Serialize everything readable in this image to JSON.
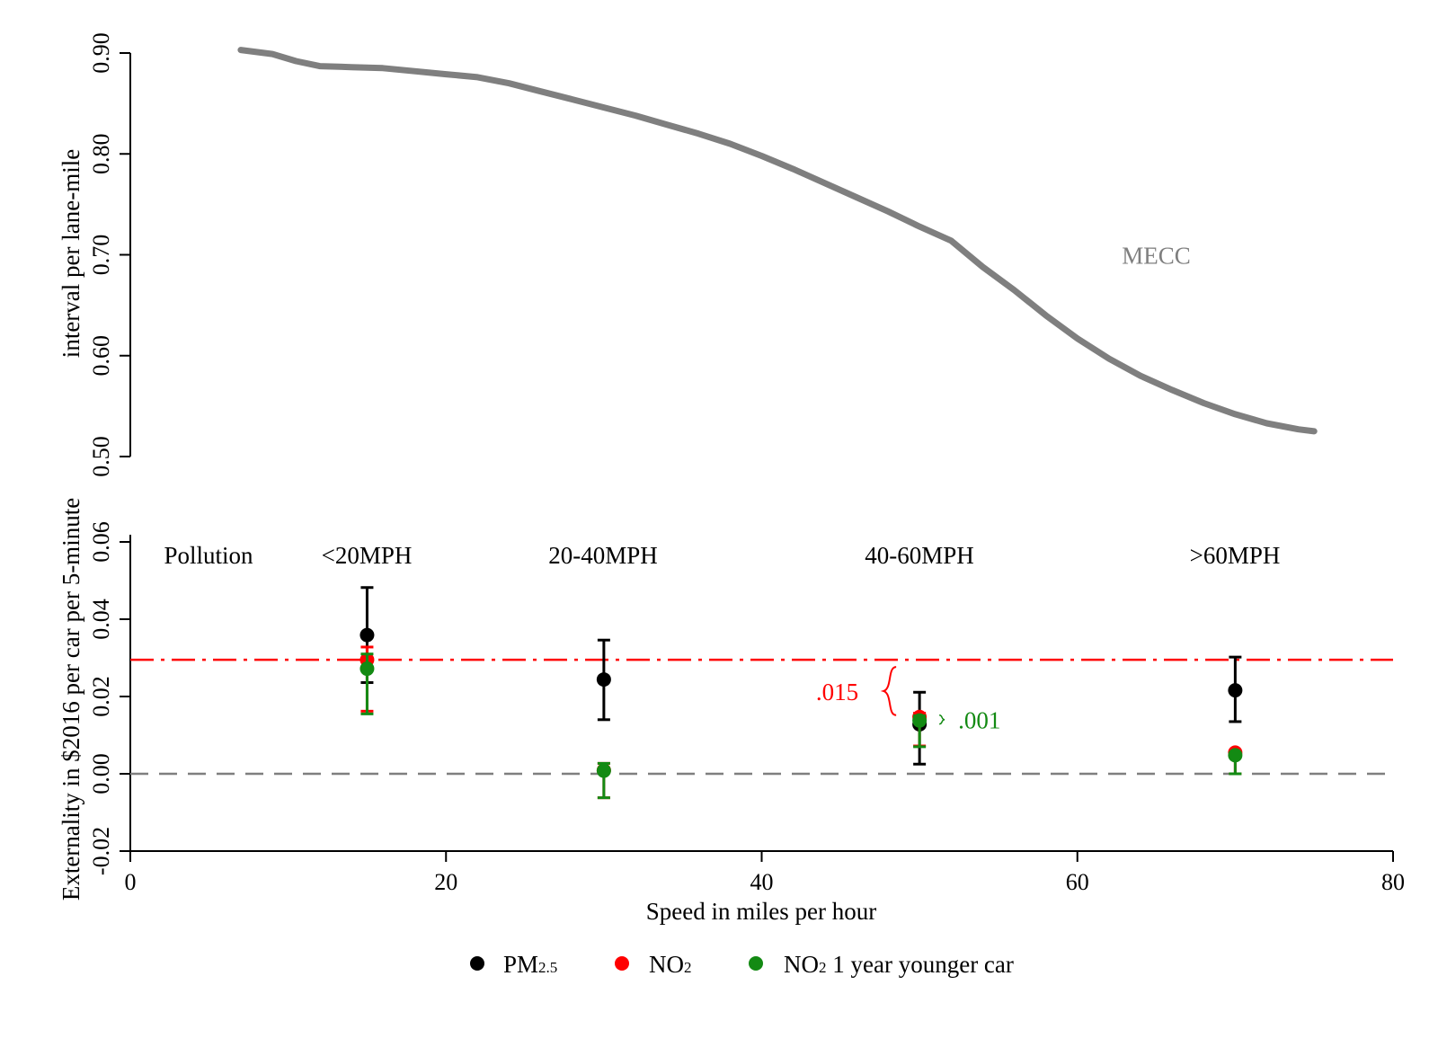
{
  "colors": {
    "mecc_line": "#7f7f7f",
    "mecc_label": "#7f7f7f",
    "pm25": "#000000",
    "no2": "#ff0000",
    "no2_younger": "#138a13",
    "zero_line": "#7f7f7f",
    "ref_line": "#ff0000"
  },
  "chart_data": [
    {
      "type": "line",
      "panel": "top",
      "ylabel": "interval per lane-mile",
      "ylim": [
        0.5,
        0.9
      ],
      "xlim": [
        0,
        80
      ],
      "yticks": [
        "0.50",
        "0.60",
        "0.70",
        "0.80",
        "0.90"
      ],
      "series": [
        {
          "name": "MECC",
          "x": [
            7,
            9,
            10.5,
            12,
            14,
            16,
            18,
            20,
            22,
            24,
            26,
            28,
            30,
            32,
            34,
            36,
            38,
            40,
            42,
            44,
            46,
            48,
            50,
            52,
            54,
            56,
            58,
            60,
            62,
            64,
            66,
            68,
            70,
            72,
            74,
            75
          ],
          "y": [
            0.903,
            0.899,
            0.892,
            0.887,
            0.886,
            0.885,
            0.882,
            0.879,
            0.876,
            0.87,
            0.862,
            0.854,
            0.846,
            0.838,
            0.829,
            0.82,
            0.81,
            0.798,
            0.785,
            0.771,
            0.757,
            0.743,
            0.728,
            0.714,
            0.688,
            0.665,
            0.64,
            0.617,
            0.597,
            0.58,
            0.566,
            0.553,
            0.542,
            0.533,
            0.527,
            0.525
          ]
        }
      ],
      "annotations": [
        {
          "text": "MECC",
          "x": 65,
          "y": 0.7
        }
      ]
    },
    {
      "type": "scatter",
      "panel": "bottom",
      "xlabel": "Speed in miles per hour",
      "ylabel": "Externality in $2016 per car per 5-minute",
      "xlim": [
        0,
        80
      ],
      "ylim": [
        -0.02,
        0.06
      ],
      "xticks": [
        "0",
        "20",
        "40",
        "60",
        "80"
      ],
      "yticks": [
        "-0.02",
        "0.00",
        "0.02",
        "0.04",
        "0.06"
      ],
      "panel_labels": [
        "Pollution",
        "<20MPH",
        "20-40MPH",
        "40-60MPH",
        ">60MPH"
      ],
      "reference_line": 0.0295,
      "zero_line": 0,
      "series": [
        {
          "name": "PM",
          "name_sub": "2.5",
          "points": [
            {
              "x": 15,
              "y": 0.0359,
              "lo": 0.0236,
              "hi": 0.0482
            },
            {
              "x": 30,
              "y": 0.0244,
              "lo": 0.014,
              "hi": 0.0346
            },
            {
              "x": 50,
              "y": 0.0128,
              "lo": 0.0025,
              "hi": 0.0211
            },
            {
              "x": 70,
              "y": 0.0216,
              "lo": 0.0135,
              "hi": 0.0302
            }
          ]
        },
        {
          "name": "NO",
          "name_sub": "2",
          "points": [
            {
              "x": 15,
              "y": 0.0295,
              "lo": 0.0162,
              "hi": 0.0328
            },
            {
              "x": 30,
              "y": 0.0009,
              "lo": -0.0062,
              "hi": 0.0027
            },
            {
              "x": 50,
              "y": 0.0147,
              "lo": 0.0072,
              "hi": 0.0157
            },
            {
              "x": 70,
              "y": 0.0055,
              "lo": 0.0,
              "hi": 0.006
            }
          ]
        },
        {
          "name": "NO",
          "name_sub": "2",
          "name_suffix": " 1 year younger car",
          "points": [
            {
              "x": 15,
              "y": 0.0272,
              "lo": 0.0155,
              "hi": 0.031
            },
            {
              "x": 30,
              "y": 0.0008,
              "lo": -0.0062,
              "hi": 0.0027
            },
            {
              "x": 50,
              "y": 0.0138,
              "lo": 0.007,
              "hi": 0.015
            },
            {
              "x": 70,
              "y": 0.0048,
              "lo": 0.0,
              "hi": 0.0055
            }
          ]
        }
      ],
      "annotations": [
        {
          "text": ".015",
          "x": 50,
          "y_top": 0.0295,
          "y_bottom": 0.0147
        },
        {
          "text": ".001",
          "x": 50,
          "y_top": 0.0147,
          "y_bottom": 0.0138
        }
      ]
    }
  ]
}
